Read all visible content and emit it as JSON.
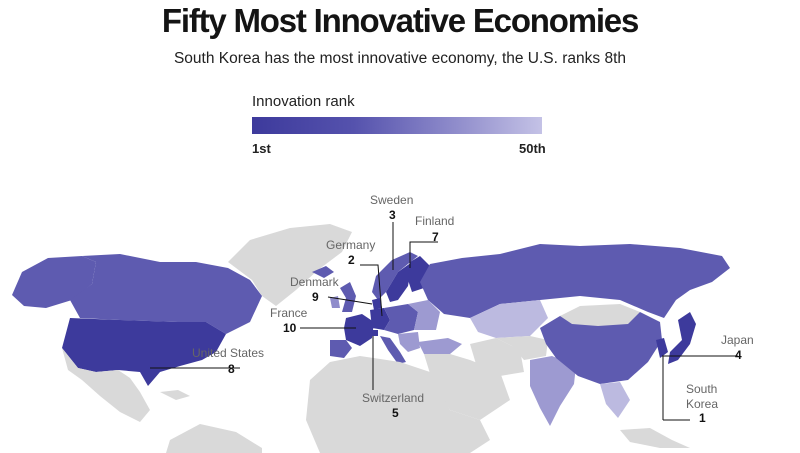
{
  "header": {
    "title": "Fifty Most Innovative Economies",
    "subtitle": "South Korea has the most innovative economy, the U.S. ranks 8th"
  },
  "legend": {
    "title": "Innovation rank",
    "low_label": "1st",
    "high_label": "50th",
    "color_start": "#3d3a9c",
    "color_end": "#c4c2e6"
  },
  "callouts": [
    {
      "country": "Sweden",
      "rank": "3"
    },
    {
      "country": "Finland",
      "rank": "7"
    },
    {
      "country": "Germany",
      "rank": "2"
    },
    {
      "country": "Denmark",
      "rank": "9"
    },
    {
      "country": "France",
      "rank": "10"
    },
    {
      "country": "United States",
      "rank": "8"
    },
    {
      "country": "Switzerland",
      "rank": "5"
    },
    {
      "country": "Japan",
      "rank": "4"
    },
    {
      "country": "South Korea",
      "rank": "1"
    }
  ],
  "colors": {
    "unranked": "#d9d9d9",
    "dark": "#3d3a9c",
    "medium": "#5e5bb0",
    "light": "#9d9ad1",
    "lightest": "#bcbae0"
  }
}
